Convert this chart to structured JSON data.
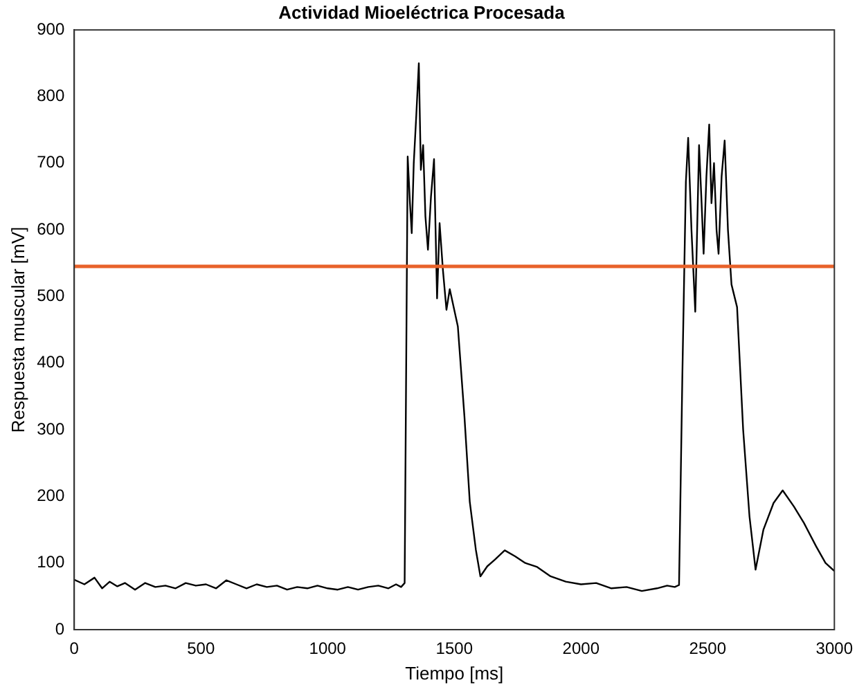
{
  "chart_data": {
    "type": "line",
    "title": "Actividad Mioeléctrica Procesada",
    "xlabel": "Tiempo [ms]",
    "ylabel": "Respuesta muscular [mV]",
    "xlim": [
      0,
      3000
    ],
    "ylim": [
      0,
      900
    ],
    "xticks": [
      0,
      500,
      1000,
      1500,
      2000,
      2500,
      3000
    ],
    "yticks": [
      0,
      100,
      200,
      300,
      400,
      500,
      600,
      700,
      800,
      900
    ],
    "grid": false,
    "legend": false,
    "marker": "none",
    "line_style": "solid",
    "series": [
      {
        "color": "#000000",
        "x": [
          0,
          40,
          80,
          110,
          140,
          170,
          200,
          240,
          280,
          320,
          360,
          400,
          440,
          480,
          520,
          560,
          600,
          640,
          680,
          720,
          760,
          800,
          840,
          880,
          920,
          960,
          1000,
          1040,
          1080,
          1120,
          1160,
          1200,
          1240,
          1270,
          1290,
          1304,
          1316,
          1325,
          1332,
          1340,
          1350,
          1360,
          1368,
          1377,
          1386,
          1396,
          1408,
          1420,
          1432,
          1442,
          1455,
          1469,
          1482,
          1514,
          1540,
          1561,
          1585,
          1603,
          1630,
          1660,
          1699,
          1740,
          1780,
          1827,
          1880,
          1940,
          2000,
          2060,
          2120,
          2180,
          2240,
          2300,
          2340,
          2370,
          2387,
          2400,
          2414,
          2423,
          2436,
          2451,
          2466,
          2476,
          2484,
          2495,
          2506,
          2515,
          2525,
          2535,
          2543,
          2555,
          2567,
          2580,
          2594,
          2616,
          2640,
          2665,
          2689,
          2720,
          2760,
          2796,
          2840,
          2880,
          2928,
          2965,
          3000
        ],
        "values": [
          75,
          68,
          78,
          62,
          72,
          65,
          70,
          60,
          70,
          64,
          66,
          62,
          70,
          66,
          68,
          62,
          74,
          68,
          62,
          68,
          64,
          66,
          60,
          64,
          62,
          66,
          62,
          60,
          64,
          60,
          64,
          66,
          62,
          68,
          64,
          70,
          710,
          640,
          595,
          700,
          772,
          850,
          690,
          727,
          620,
          570,
          650,
          706,
          497,
          610,
          540,
          480,
          511,
          455,
          320,
          192,
          120,
          80,
          95,
          105,
          119,
          110,
          100,
          94,
          80,
          72,
          68,
          70,
          62,
          64,
          58,
          62,
          66,
          64,
          67,
          380,
          672,
          738,
          600,
          477,
          727,
          640,
          564,
          680,
          758,
          640,
          700,
          600,
          564,
          680,
          734,
          600,
          518,
          484,
          300,
          170,
          90,
          150,
          190,
          209,
          185,
          160,
          125,
          100,
          88
        ]
      }
    ],
    "ref_lines": [
      {
        "axis": "y",
        "value": 545,
        "color": "#e8622a",
        "line_style": "solid"
      }
    ]
  }
}
